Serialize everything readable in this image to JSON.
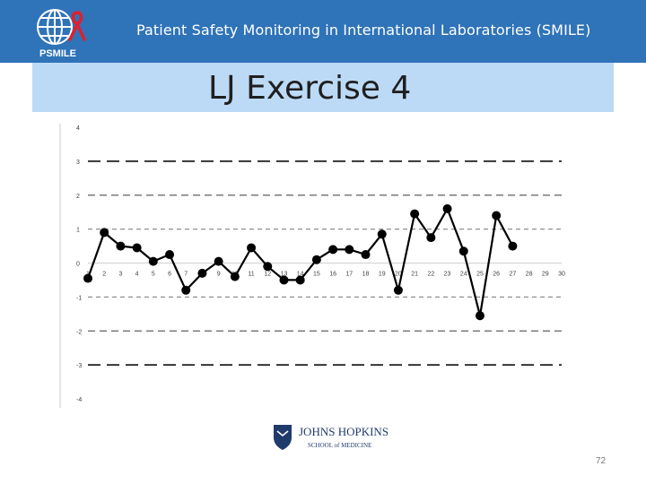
{
  "header": {
    "title": "Patient Safety Monitoring in International Laboratories (SMILE)",
    "logo_text": "PSMILE",
    "color": "#2f73b8"
  },
  "slide": {
    "title": "LJ Exercise 4",
    "page_number": "72"
  },
  "footer_logo": {
    "line1": "JOHNS HOPKINS",
    "line2": "SCHOOL of MEDICINE"
  },
  "chart_data": {
    "type": "line",
    "title": "",
    "xlabel": "",
    "ylabel": "",
    "x": [
      1,
      2,
      3,
      4,
      5,
      6,
      7,
      8,
      9,
      10,
      11,
      12,
      13,
      14,
      15,
      16,
      17,
      18,
      19,
      20,
      21,
      22,
      23,
      24,
      25,
      26,
      27
    ],
    "values": [
      -0.45,
      0.9,
      0.5,
      0.45,
      0.05,
      0.25,
      -0.8,
      -0.3,
      0.05,
      -0.4,
      0.45,
      -0.1,
      -0.5,
      -0.5,
      0.1,
      0.4,
      0.4,
      0.25,
      0.85,
      -0.8,
      1.45,
      0.75,
      1.6,
      0.35,
      -1.55,
      1.4,
      0.5
    ],
    "xlim": [
      1,
      30
    ],
    "ylim": [
      -4,
      4
    ],
    "x_ticks": [
      "1",
      "2",
      "3",
      "4",
      "5",
      "6",
      "7",
      "8",
      "9",
      "10",
      "11",
      "12",
      "13",
      "14",
      "15",
      "16",
      "17",
      "18",
      "19",
      "20",
      "21",
      "22",
      "23",
      "24",
      "25",
      "26",
      "27",
      "28",
      "29",
      "30"
    ],
    "y_ticks": [
      "4",
      "3",
      "2",
      "1",
      "0",
      "-1",
      "-2",
      "-3",
      "-4"
    ],
    "reference_lines": [
      3,
      2,
      1,
      -1,
      -2,
      -3
    ],
    "grid": false,
    "legend": "none",
    "line_color": "#000000"
  }
}
